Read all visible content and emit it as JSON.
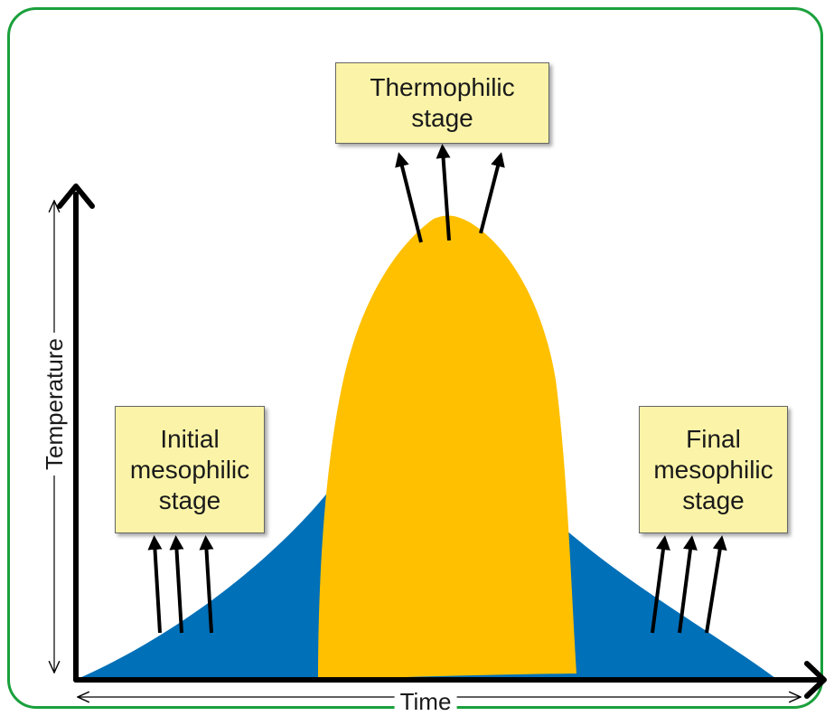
{
  "labels": {
    "thermophilic_line1": "Thermophilic",
    "thermophilic_line2": "stage",
    "initial_line1": "Initial",
    "initial_line2": "mesophilic",
    "initial_line3": "stage",
    "final_line1": "Final",
    "final_line2": "mesophilic",
    "final_line3": "stage"
  },
  "axes": {
    "y_label": "Temperature",
    "x_label": "Time"
  },
  "colors": {
    "frame": "#1aa03c",
    "mesophilic_fill": "#0070b8",
    "thermophilic_fill": "#ffc000",
    "label_box": "#fbf4a8",
    "arrows": "#000000"
  }
}
